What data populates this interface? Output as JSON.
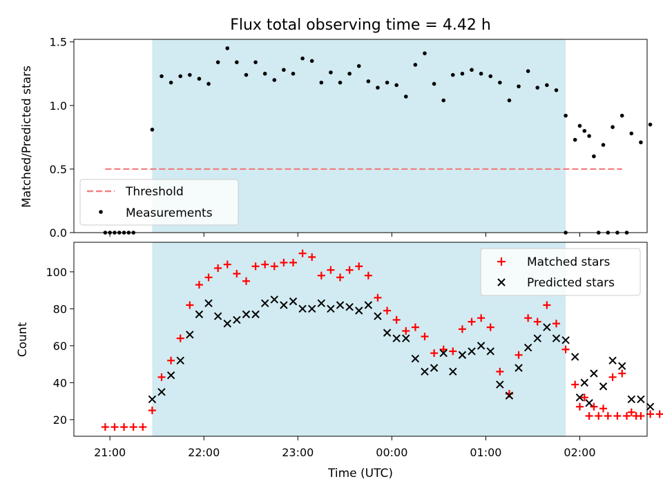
{
  "chart_data": [
    {
      "type": "scatter",
      "title": "Flux total observing time = 4.42 h",
      "xlabel": "",
      "ylabel": "Matched/Predicted stars",
      "ylim": [
        0,
        1.52
      ],
      "yticks": [
        "0.0",
        "0.5",
        "1.0",
        "1.5"
      ],
      "ytick_values": [
        0,
        0.5,
        1.0,
        1.5
      ],
      "observing_window": {
        "start": "21:27",
        "end": "01:51",
        "color": "#add8e6"
      },
      "threshold": {
        "name": "Threshold",
        "value": 0.5,
        "x_start": "20:57",
        "x_end": "02:27",
        "color": "#f08080"
      },
      "legend": {
        "position": "lower-left",
        "entries": [
          "Threshold",
          "Measurements"
        ]
      },
      "series": [
        {
          "name": "Measurements",
          "color": "#000000",
          "marker": "dot",
          "points": [
            [
              "20:57",
              0
            ],
            [
              "21:00",
              0
            ],
            [
              "21:03",
              0
            ],
            [
              "21:06",
              0
            ],
            [
              "21:09",
              0
            ],
            [
              "21:12",
              0
            ],
            [
              "21:15",
              0
            ],
            [
              "21:27",
              0.81
            ],
            [
              "21:33",
              1.23
            ],
            [
              "21:39",
              1.18
            ],
            [
              "21:45",
              1.23
            ],
            [
              "21:51",
              1.24
            ],
            [
              "21:57",
              1.21
            ],
            [
              "22:03",
              1.17
            ],
            [
              "22:09",
              1.34
            ],
            [
              "22:15",
              1.45
            ],
            [
              "22:21",
              1.34
            ],
            [
              "22:27",
              1.24
            ],
            [
              "22:33",
              1.34
            ],
            [
              "22:39",
              1.25
            ],
            [
              "22:45",
              1.2
            ],
            [
              "22:51",
              1.28
            ],
            [
              "22:57",
              1.25
            ],
            [
              "23:03",
              1.37
            ],
            [
              "23:09",
              1.35
            ],
            [
              "23:15",
              1.18
            ],
            [
              "23:21",
              1.26
            ],
            [
              "23:27",
              1.18
            ],
            [
              "23:33",
              1.25
            ],
            [
              "23:39",
              1.31
            ],
            [
              "23:45",
              1.19
            ],
            [
              "23:51",
              1.14
            ],
            [
              "23:57",
              1.18
            ],
            [
              "00:03",
              1.16
            ],
            [
              "00:09",
              1.07
            ],
            [
              "00:15",
              1.32
            ],
            [
              "00:21",
              1.41
            ],
            [
              "00:27",
              1.17
            ],
            [
              "00:33",
              1.04
            ],
            [
              "00:39",
              1.24
            ],
            [
              "00:45",
              1.25
            ],
            [
              "00:51",
              1.28
            ],
            [
              "00:57",
              1.25
            ],
            [
              "01:03",
              1.23
            ],
            [
              "01:09",
              1.18
            ],
            [
              "01:15",
              1.04
            ],
            [
              "01:21",
              1.15
            ],
            [
              "01:27",
              1.27
            ],
            [
              "01:33",
              1.14
            ],
            [
              "01:39",
              1.16
            ],
            [
              "01:45",
              1.12
            ],
            [
              "01:51",
              0.92
            ],
            [
              "01:57",
              0.73
            ],
            [
              "02:03",
              0.8
            ],
            [
              "02:09",
              0.6
            ],
            [
              "02:15",
              0.69
            ],
            [
              "02:21",
              0.83
            ],
            [
              "02:27",
              0.92
            ],
            [
              "02:33",
              0.78
            ],
            [
              "02:39",
              0.71
            ],
            [
              "02:45",
              0.85
            ],
            [
              "01:51",
              0
            ],
            [
              "02:00",
              0.84
            ],
            [
              "02:06",
              0.76
            ],
            [
              "02:12",
              0
            ],
            [
              "02:18",
              0
            ],
            [
              "02:24",
              0
            ],
            [
              "02:30",
              0
            ]
          ]
        }
      ]
    },
    {
      "type": "scatter",
      "title": "",
      "xlabel": "Time (UTC)",
      "ylabel": "Count",
      "ylim": [
        11,
        116
      ],
      "yticks": [
        "20",
        "40",
        "60",
        "80",
        "100"
      ],
      "ytick_values": [
        20,
        40,
        60,
        80,
        100
      ],
      "xticks": [
        "21:00",
        "22:00",
        "23:00",
        "00:00",
        "01:00",
        "02:00"
      ],
      "observing_window": {
        "start": "21:27",
        "end": "01:51",
        "color": "#add8e6"
      },
      "legend": {
        "position": "top-right",
        "entries": [
          "Matched stars",
          "Predicted stars"
        ]
      },
      "series": [
        {
          "name": "Matched stars",
          "color": "#ff0000",
          "marker": "plus",
          "points": [
            [
              "20:57",
              16
            ],
            [
              "21:03",
              16
            ],
            [
              "21:09",
              16
            ],
            [
              "21:15",
              16
            ],
            [
              "21:21",
              16
            ],
            [
              "21:27",
              25
            ],
            [
              "21:33",
              43
            ],
            [
              "21:39",
              52
            ],
            [
              "21:45",
              64
            ],
            [
              "21:51",
              82
            ],
            [
              "21:57",
              93
            ],
            [
              "22:03",
              97
            ],
            [
              "22:09",
              102
            ],
            [
              "22:15",
              104
            ],
            [
              "22:21",
              99
            ],
            [
              "22:27",
              95
            ],
            [
              "22:33",
              103
            ],
            [
              "22:39",
              104
            ],
            [
              "22:45",
              103
            ],
            [
              "22:51",
              105
            ],
            [
              "22:57",
              105
            ],
            [
              "23:03",
              110
            ],
            [
              "23:09",
              108
            ],
            [
              "23:15",
              98
            ],
            [
              "23:21",
              101
            ],
            [
              "23:27",
              97
            ],
            [
              "23:33",
              101
            ],
            [
              "23:39",
              103
            ],
            [
              "23:45",
              98
            ],
            [
              "23:51",
              86
            ],
            [
              "23:57",
              79
            ],
            [
              "00:03",
              74
            ],
            [
              "00:09",
              68
            ],
            [
              "00:15",
              70
            ],
            [
              "00:21",
              65
            ],
            [
              "00:27",
              56
            ],
            [
              "00:33",
              58
            ],
            [
              "00:39",
              57
            ],
            [
              "00:45",
              69
            ],
            [
              "00:51",
              73
            ],
            [
              "00:57",
              75
            ],
            [
              "01:03",
              70
            ],
            [
              "01:09",
              46
            ],
            [
              "01:15",
              34
            ],
            [
              "01:21",
              55
            ],
            [
              "01:27",
              75
            ],
            [
              "01:33",
              73
            ],
            [
              "01:39",
              82
            ],
            [
              "01:45",
              72
            ],
            [
              "01:51",
              58
            ],
            [
              "01:57",
              39
            ],
            [
              "02:03",
              32
            ],
            [
              "02:09",
              27
            ],
            [
              "02:15",
              26
            ],
            [
              "02:21",
              43
            ],
            [
              "02:27",
              45
            ],
            [
              "02:33",
              24
            ],
            [
              "02:39",
              22
            ],
            [
              "02:45",
              23
            ],
            [
              "02:51",
              23
            ],
            [
              "02:00",
              27
            ],
            [
              "02:06",
              22
            ],
            [
              "02:12",
              22
            ],
            [
              "02:18",
              22
            ],
            [
              "02:24",
              22
            ],
            [
              "02:30",
              22
            ],
            [
              "02:36",
              22
            ]
          ]
        },
        {
          "name": "Predicted stars",
          "color": "#000000",
          "marker": "x",
          "points": [
            [
              "21:27",
              31
            ],
            [
              "21:33",
              35
            ],
            [
              "21:39",
              44
            ],
            [
              "21:45",
              52
            ],
            [
              "21:51",
              66
            ],
            [
              "21:57",
              77
            ],
            [
              "22:03",
              83
            ],
            [
              "22:09",
              76
            ],
            [
              "22:15",
              72
            ],
            [
              "22:21",
              74
            ],
            [
              "22:27",
              77
            ],
            [
              "22:33",
              77
            ],
            [
              "22:39",
              83
            ],
            [
              "22:45",
              85
            ],
            [
              "22:51",
              82
            ],
            [
              "22:57",
              84
            ],
            [
              "23:03",
              80
            ],
            [
              "23:09",
              80
            ],
            [
              "23:15",
              83
            ],
            [
              "23:21",
              80
            ],
            [
              "23:27",
              82
            ],
            [
              "23:33",
              81
            ],
            [
              "23:39",
              79
            ],
            [
              "23:45",
              82
            ],
            [
              "23:51",
              76
            ],
            [
              "23:57",
              67
            ],
            [
              "00:03",
              64
            ],
            [
              "00:09",
              64
            ],
            [
              "00:15",
              53
            ],
            [
              "00:21",
              46
            ],
            [
              "00:27",
              48
            ],
            [
              "00:33",
              56
            ],
            [
              "00:39",
              46
            ],
            [
              "00:45",
              55
            ],
            [
              "00:51",
              57
            ],
            [
              "00:57",
              60
            ],
            [
              "01:03",
              57
            ],
            [
              "01:09",
              39
            ],
            [
              "01:15",
              33
            ],
            [
              "01:21",
              48
            ],
            [
              "01:27",
              59
            ],
            [
              "01:33",
              64
            ],
            [
              "01:39",
              70
            ],
            [
              "01:45",
              64
            ],
            [
              "01:51",
              63
            ],
            [
              "01:57",
              54
            ],
            [
              "02:03",
              40
            ],
            [
              "02:09",
              45
            ],
            [
              "02:15",
              38
            ],
            [
              "02:21",
              52
            ],
            [
              "02:27",
              49
            ],
            [
              "02:33",
              31
            ],
            [
              "02:39",
              31
            ],
            [
              "02:45",
              27
            ],
            [
              "02:00",
              32
            ],
            [
              "02:06",
              29
            ]
          ]
        }
      ]
    }
  ]
}
